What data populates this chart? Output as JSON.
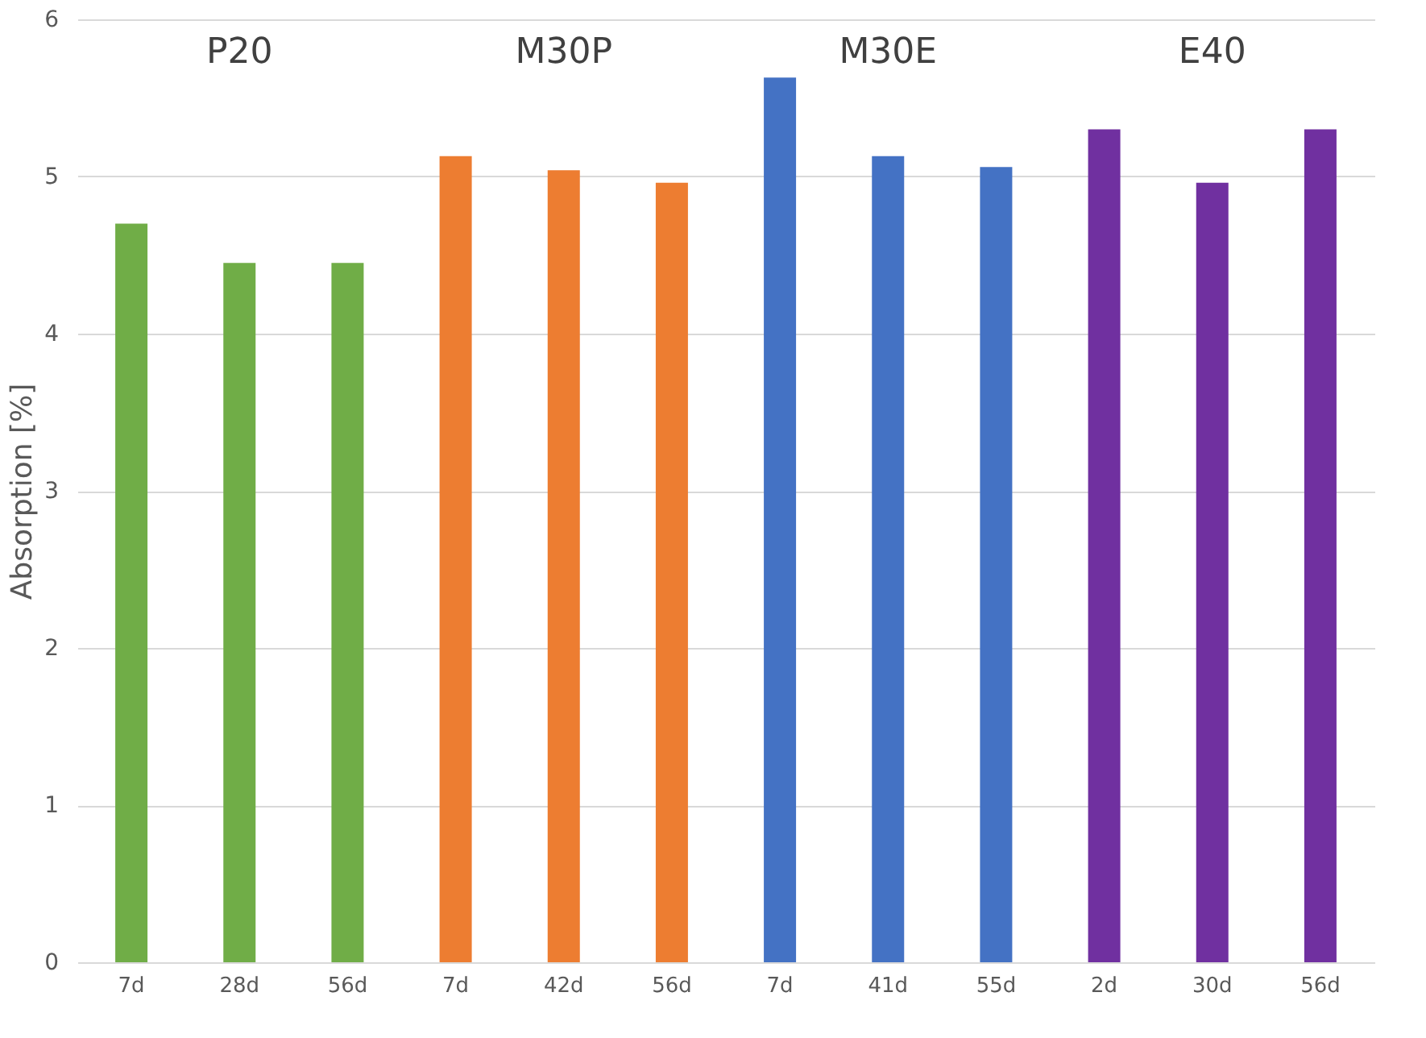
{
  "chart_data": {
    "type": "bar",
    "ylabel": "Absorption [%]",
    "categories": [
      "7d",
      "28d",
      "56d",
      "7d",
      "42d",
      "56d",
      "7d",
      "41d",
      "55d",
      "2d",
      "30d",
      "56d"
    ],
    "values": [
      4.7,
      4.45,
      4.45,
      5.13,
      5.04,
      4.96,
      5.63,
      5.13,
      5.06,
      5.3,
      4.96,
      5.3
    ],
    "colors": [
      "#70ad47",
      "#70ad47",
      "#70ad47",
      "#ed7d31",
      "#ed7d31",
      "#ed7d31",
      "#4472c4",
      "#4472c4",
      "#4472c4",
      "#7030a0",
      "#7030a0",
      "#7030a0"
    ],
    "annotations": [
      "P20",
      "M30P",
      "M30E",
      "E40"
    ],
    "ylim": [
      0,
      6
    ],
    "yticks": [
      0,
      1,
      2,
      3,
      4,
      5,
      6
    ],
    "grid": "y"
  }
}
